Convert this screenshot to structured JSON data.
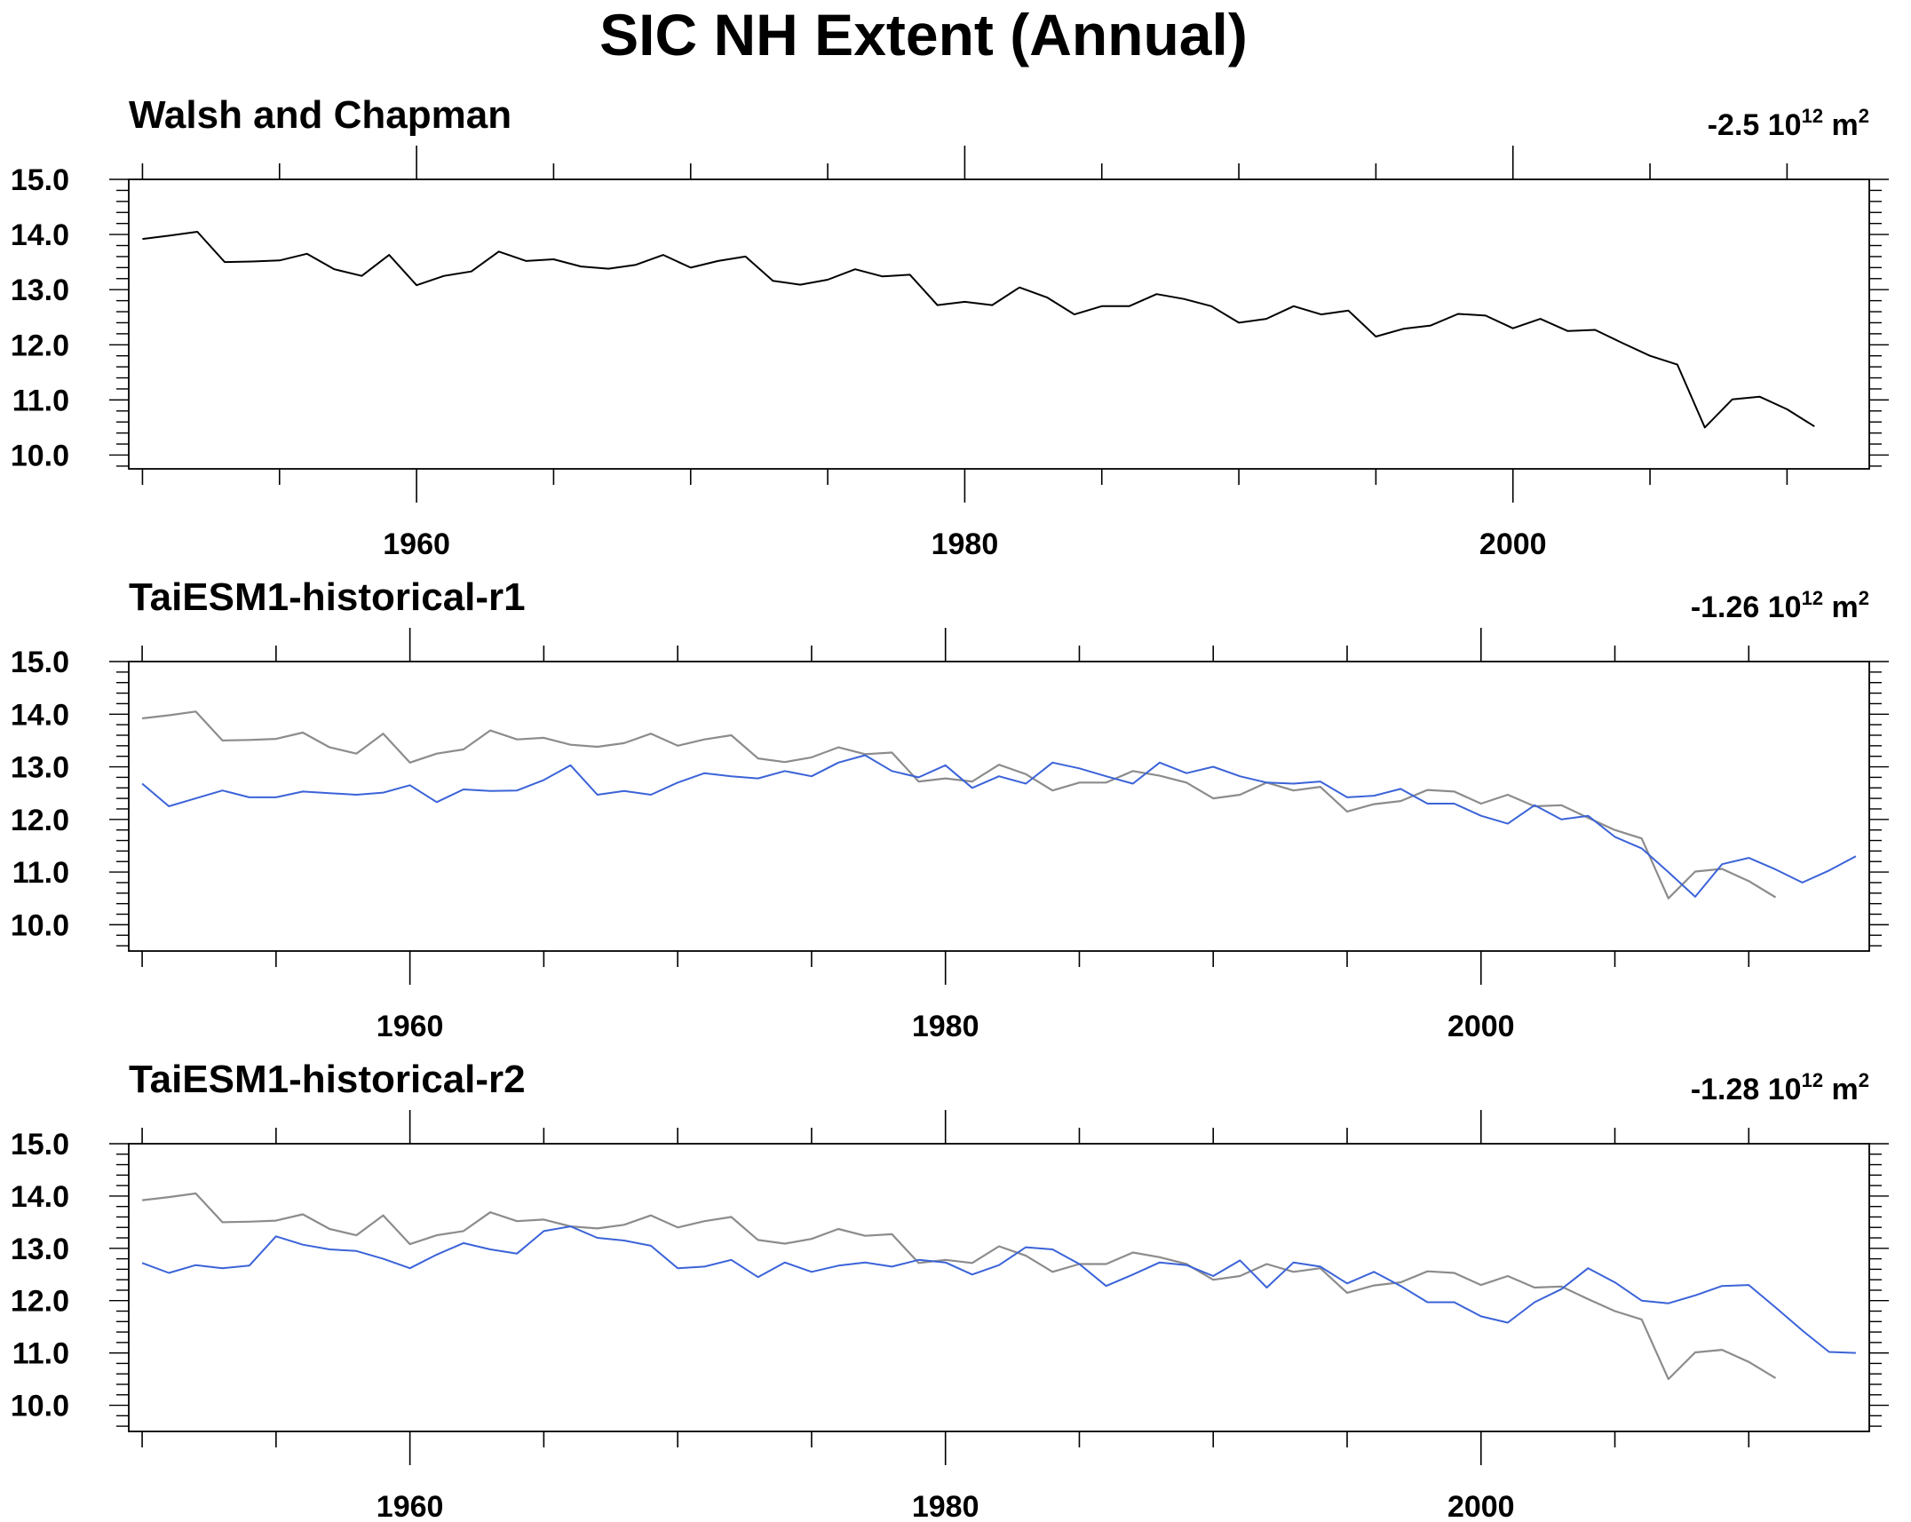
{
  "title": "SIC NH Extent (Annual)",
  "colors": {
    "observation": "#000000",
    "reference": "#8c8c8c",
    "model": "#3b63d8",
    "axes": "#000000"
  },
  "chart_data": [
    {
      "type": "line",
      "title": "Walsh and Chapman",
      "trend": "-2.5 10",
      "trend_exp": "12",
      "trend_unit": " m",
      "trend_unit_exp": "2",
      "xlabel": "",
      "ylabel": "",
      "xlim": [
        1949.5,
        2013.0
      ],
      "ylim": [
        9.75,
        15.0
      ],
      "xticks": [
        "1960",
        "1980",
        "2000"
      ],
      "yticks": [
        "15.0",
        "14.0",
        "13.0",
        "12.0",
        "11.0",
        "10.0"
      ],
      "grid": false,
      "series": [
        {
          "role": "observation",
          "x_start": 1950,
          "values": [
            13.92,
            13.98,
            14.05,
            13.5,
            13.51,
            13.53,
            13.65,
            13.37,
            13.25,
            13.63,
            13.08,
            13.25,
            13.33,
            13.69,
            13.52,
            13.55,
            13.42,
            13.38,
            13.45,
            13.63,
            13.4,
            13.52,
            13.6,
            13.16,
            13.09,
            13.18,
            13.37,
            13.24,
            13.27,
            12.72,
            12.78,
            12.72,
            13.04,
            12.86,
            12.55,
            12.7,
            12.7,
            12.92,
            12.83,
            12.7,
            12.4,
            12.47,
            12.7,
            12.55,
            12.62,
            12.15,
            12.29,
            12.35,
            12.56,
            12.53,
            12.3,
            12.47,
            12.25,
            12.27,
            12.03,
            11.8,
            11.64,
            10.5,
            11.01,
            11.06,
            10.83,
            10.52
          ]
        }
      ]
    },
    {
      "type": "line",
      "title": "TaiESM1-historical-r1",
      "trend": "-1.26 10",
      "trend_exp": "12",
      "trend_unit": " m",
      "trend_unit_exp": "2",
      "xlabel": "",
      "ylabel": "",
      "xlim": [
        1949.5,
        2014.5
      ],
      "ylim": [
        9.5,
        15.0
      ],
      "xticks": [
        "1960",
        "1980",
        "2000"
      ],
      "yticks": [
        "15.0",
        "14.0",
        "13.0",
        "12.0",
        "11.0",
        "10.0"
      ],
      "grid": false,
      "series": [
        {
          "role": "reference",
          "x_start": 1950,
          "values": [
            13.92,
            13.98,
            14.05,
            13.5,
            13.51,
            13.53,
            13.65,
            13.37,
            13.25,
            13.63,
            13.08,
            13.25,
            13.33,
            13.69,
            13.52,
            13.55,
            13.42,
            13.38,
            13.45,
            13.63,
            13.4,
            13.52,
            13.6,
            13.16,
            13.09,
            13.18,
            13.37,
            13.24,
            13.27,
            12.72,
            12.78,
            12.72,
            13.04,
            12.86,
            12.55,
            12.7,
            12.7,
            12.92,
            12.83,
            12.7,
            12.4,
            12.47,
            12.7,
            12.55,
            12.62,
            12.15,
            12.29,
            12.35,
            12.56,
            12.53,
            12.3,
            12.47,
            12.25,
            12.27,
            12.03,
            11.8,
            11.64,
            10.5,
            11.01,
            11.06,
            10.83,
            10.52
          ]
        },
        {
          "role": "model",
          "x_start": 1950,
          "values": [
            12.68,
            12.25,
            12.4,
            12.55,
            12.42,
            12.42,
            12.53,
            12.5,
            12.47,
            12.51,
            12.65,
            12.33,
            12.57,
            12.54,
            12.55,
            12.75,
            13.03,
            12.47,
            12.54,
            12.47,
            12.7,
            12.88,
            12.82,
            12.78,
            12.92,
            12.82,
            13.08,
            13.22,
            12.92,
            12.8,
            13.03,
            12.6,
            12.82,
            12.68,
            13.08,
            12.97,
            12.82,
            12.68,
            13.08,
            12.88,
            13.0,
            12.82,
            12.7,
            12.68,
            12.72,
            12.42,
            12.45,
            12.58,
            12.3,
            12.3,
            12.07,
            11.92,
            12.27,
            12.0,
            12.07,
            11.67,
            11.45,
            11.0,
            10.53,
            11.15,
            11.27,
            11.05,
            10.8,
            11.03,
            11.3
          ]
        }
      ]
    },
    {
      "type": "line",
      "title": "TaiESM1-historical-r2",
      "trend": "-1.28 10",
      "trend_exp": "12",
      "trend_unit": " m",
      "trend_unit_exp": "2",
      "xlabel": "",
      "ylabel": "",
      "xlim": [
        1949.5,
        2014.5
      ],
      "ylim": [
        9.5,
        15.0
      ],
      "xticks": [
        "1960",
        "1980",
        "2000"
      ],
      "yticks": [
        "15.0",
        "14.0",
        "13.0",
        "12.0",
        "11.0",
        "10.0"
      ],
      "grid": false,
      "series": [
        {
          "role": "reference",
          "x_start": 1950,
          "values": [
            13.92,
            13.98,
            14.05,
            13.5,
            13.51,
            13.53,
            13.65,
            13.37,
            13.25,
            13.63,
            13.08,
            13.25,
            13.33,
            13.69,
            13.52,
            13.55,
            13.42,
            13.38,
            13.45,
            13.63,
            13.4,
            13.52,
            13.6,
            13.16,
            13.09,
            13.18,
            13.37,
            13.24,
            13.27,
            12.72,
            12.78,
            12.72,
            13.04,
            12.86,
            12.55,
            12.7,
            12.7,
            12.92,
            12.83,
            12.7,
            12.4,
            12.47,
            12.7,
            12.55,
            12.62,
            12.15,
            12.29,
            12.35,
            12.56,
            12.53,
            12.3,
            12.47,
            12.25,
            12.27,
            12.03,
            11.8,
            11.64,
            10.5,
            11.01,
            11.06,
            10.83,
            10.52
          ]
        },
        {
          "role": "model",
          "x_start": 1950,
          "values": [
            12.72,
            12.53,
            12.68,
            12.62,
            12.67,
            13.23,
            13.07,
            12.98,
            12.95,
            12.8,
            12.62,
            12.88,
            13.1,
            12.98,
            12.9,
            13.33,
            13.42,
            13.2,
            13.15,
            13.05,
            12.62,
            12.65,
            12.78,
            12.45,
            12.73,
            12.55,
            12.67,
            12.73,
            12.65,
            12.78,
            12.73,
            12.5,
            12.68,
            13.02,
            12.98,
            12.7,
            12.28,
            12.5,
            12.73,
            12.68,
            12.47,
            12.77,
            12.25,
            12.73,
            12.65,
            12.33,
            12.55,
            12.28,
            11.97,
            11.97,
            11.7,
            11.58,
            11.97,
            12.22,
            12.62,
            12.35,
            12.0,
            11.95,
            12.1,
            12.28,
            12.3,
            11.87,
            11.43,
            11.02,
            11.0
          ]
        }
      ]
    }
  ]
}
